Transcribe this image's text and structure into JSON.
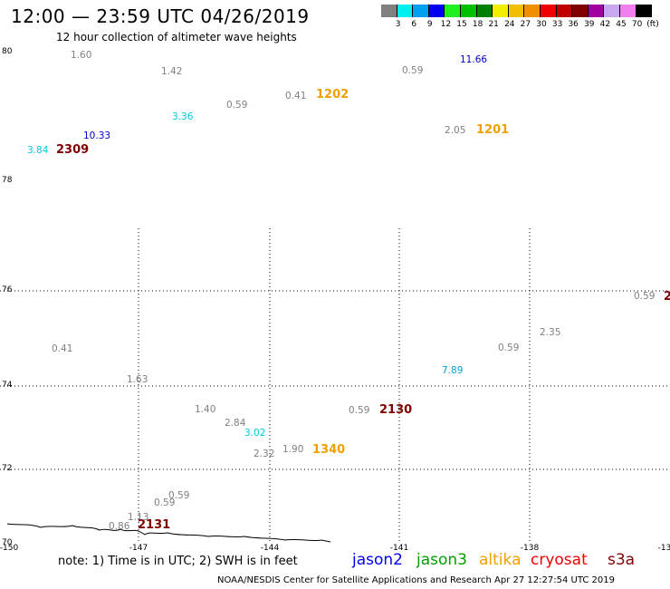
{
  "title": "12:00 — 23:59 UTC 04/26/2019",
  "subtitle": "12 hour collection of altimeter wave heights",
  "scale": {
    "unit": "(ft)",
    "colors": [
      "#808080",
      "#00f0f0",
      "#00a0f0",
      "#0000f0",
      "#20f020",
      "#00c000",
      "#008000",
      "#f0f000",
      "#f0c000",
      "#f09000",
      "#f00000",
      "#c00000",
      "#800000",
      "#a000a0",
      "#c8a8f0",
      "#f080f0",
      "#000000"
    ],
    "labels": [
      "3",
      "6",
      "9",
      "12",
      "15",
      "18",
      "21",
      "24",
      "27",
      "30",
      "33",
      "36",
      "39",
      "42",
      "45",
      "70"
    ]
  },
  "axes": {
    "lat_labels": [
      "80",
      "78",
      "76",
      "74",
      "72",
      "70"
    ],
    "lon_labels": [
      "-150",
      "-147",
      "-144",
      "-141",
      "-138",
      "-13"
    ]
  },
  "observations": [
    {
      "v": "1.60",
      "c": "#808080"
    },
    {
      "v": "1.42",
      "c": "#808080"
    },
    {
      "v": "0.59",
      "c": "#808080"
    },
    {
      "v": "11.66",
      "c": "#0000d0"
    },
    {
      "v": "0.41",
      "c": "#808080"
    },
    {
      "v": "3.36",
      "c": "#00c8e0"
    },
    {
      "v": "0.59",
      "c": "#808080"
    },
    {
      "v": "2.05",
      "c": "#808080"
    },
    {
      "v": "10.33",
      "c": "#0000d0"
    },
    {
      "v": "3.84",
      "c": "#00c8e0"
    },
    {
      "v": "0.59",
      "c": "#808080"
    },
    {
      "v": "2.35",
      "c": "#808080"
    },
    {
      "v": "0.59",
      "c": "#808080"
    },
    {
      "v": "0.41",
      "c": "#808080"
    },
    {
      "v": "7.89",
      "c": "#00a0e0"
    },
    {
      "v": "1.63",
      "c": "#808080"
    },
    {
      "v": "1.40",
      "c": "#808080"
    },
    {
      "v": "0.59",
      "c": "#808080"
    },
    {
      "v": "2.84",
      "c": "#808080"
    },
    {
      "v": "3.02",
      "c": "#00c8e0"
    },
    {
      "v": "1.90",
      "c": "#808080"
    },
    {
      "v": "2.32",
      "c": "#808080"
    },
    {
      "v": "0.59",
      "c": "#808080"
    },
    {
      "v": "0.59",
      "c": "#808080"
    },
    {
      "v": "1.13",
      "c": "#808080"
    },
    {
      "v": "0.86",
      "c": "#808080"
    }
  ],
  "passes": [
    {
      "v": "1202",
      "c": "#f0a000"
    },
    {
      "v": "1201",
      "c": "#f0a000"
    },
    {
      "v": "2309",
      "c": "#800000"
    },
    {
      "v": "2",
      "c": "#800000"
    },
    {
      "v": "2130",
      "c": "#800000"
    },
    {
      "v": "1340",
      "c": "#f0a000"
    },
    {
      "v": "2131",
      "c": "#800000"
    }
  ],
  "note": "note: 1) Time is in UTC; 2) SWH is in feet",
  "satellites": [
    {
      "name": "jason2",
      "c": "#0000f0"
    },
    {
      "name": "jason3",
      "c": "#00a000"
    },
    {
      "name": "altika",
      "c": "#f0a000"
    },
    {
      "name": "cryosat",
      "c": "#f00000"
    },
    {
      "name": "s3a",
      "c": "#800000"
    }
  ],
  "credit": "NOAA/NESDIS Center for Satellite Applications and Research   Apr 27 12:27:54 UTC 2019"
}
